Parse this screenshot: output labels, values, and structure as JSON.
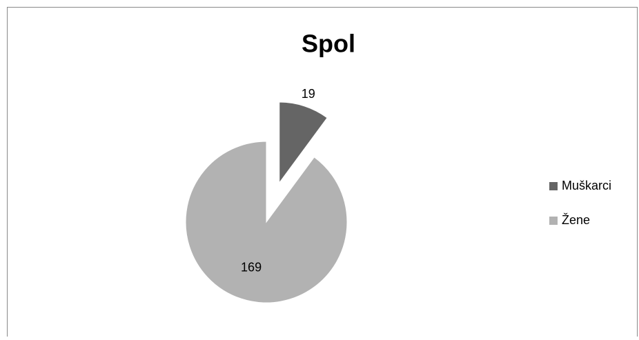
{
  "chart_data": {
    "type": "pie",
    "title": "Spol",
    "categories": [
      "Muškarci",
      "Žene"
    ],
    "values": [
      19,
      169
    ],
    "colors": [
      "#656565",
      "#b2b2b2"
    ],
    "legend": "right"
  }
}
